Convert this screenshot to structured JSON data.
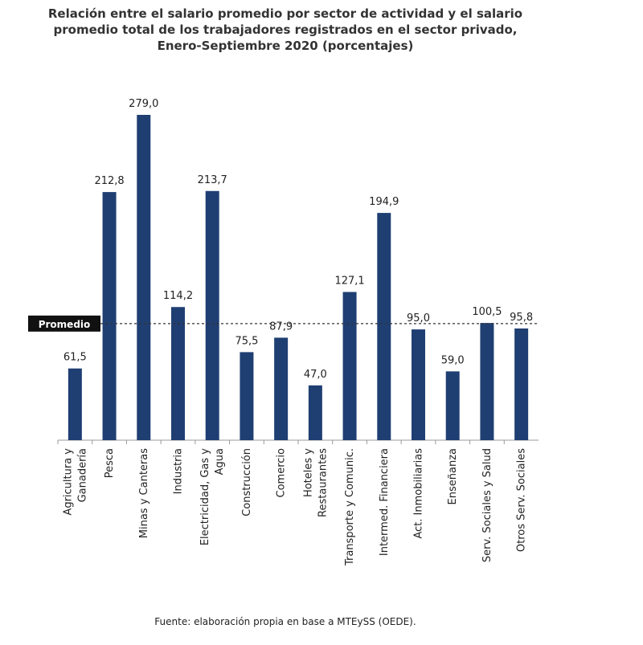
{
  "chart_data": {
    "type": "bar",
    "title": "Relación entre el salario promedio por sector de actividad y el salario\npromedio total de los trabajadores registrados en el sector privado,\nEnero-Septiembre 2020 (porcentajes)",
    "categories": [
      "Agricultura y\nGanadería",
      "Pesca",
      "Minas y Canteras",
      "Industria",
      "Electricidad, Gas y\nAgua",
      "Construcción",
      "Comercio",
      "Hoteles y\nRestaurantes",
      "Transporte y Comunic.",
      "Intermed. Financiera",
      "Act. Inmobiliarias",
      "Enseñanza",
      "Serv. Sociales y Salud",
      "Otros Serv. Sociales"
    ],
    "values": [
      61.5,
      212.8,
      279.0,
      114.2,
      213.7,
      75.5,
      87.9,
      47.0,
      127.1,
      194.9,
      95.0,
      59.0,
      100.5,
      95.8
    ],
    "value_labels": [
      "61,5",
      "212,8",
      "279,0",
      "114,2",
      "213,7",
      "75,5",
      "87,9",
      "47,0",
      "127,1",
      "194,9",
      "95,0",
      "59,0",
      "100,5",
      "95,8"
    ],
    "color": "#1f3f73",
    "ylim": [
      0,
      310
    ],
    "reference": {
      "value": 100,
      "label": "Promedio"
    },
    "source": "Fuente: elaboración propia en base a MTEySS (OEDE)."
  }
}
